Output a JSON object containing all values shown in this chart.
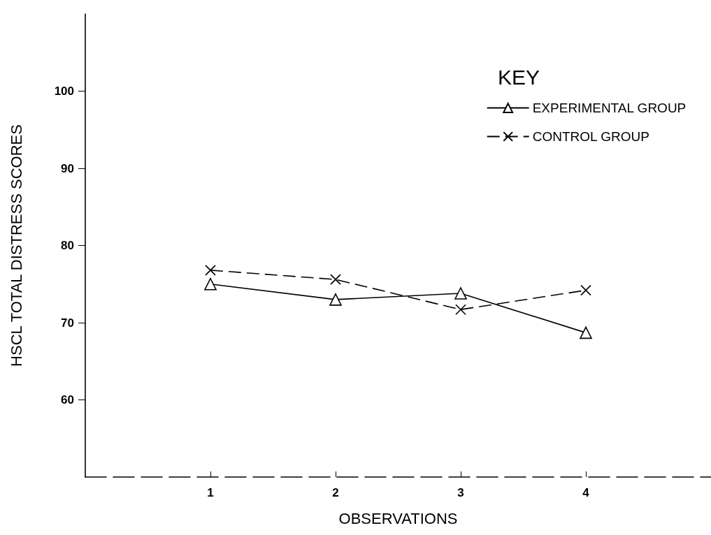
{
  "chart_data": {
    "type": "line",
    "xlabel": "OBSERVATIONS",
    "ylabel": "HSCL TOTAL DISTRESS SCORES",
    "legend_title": "KEY",
    "x": [
      1,
      2,
      3,
      4
    ],
    "series": [
      {
        "name": "EXPERIMENTAL GROUP",
        "color": "#000000",
        "marker": "triangle",
        "line_style": "solid",
        "values": [
          75,
          73,
          73.8,
          68.7
        ]
      },
      {
        "name": "CONTROL GROUP",
        "color": "#000000",
        "marker": "cross",
        "line_style": "dashed",
        "values": [
          76.8,
          75.6,
          71.7,
          74.2
        ]
      }
    ],
    "xlim": [
      0,
      5
    ],
    "xticks": [
      1,
      2,
      3,
      4
    ],
    "ylim": [
      50,
      110
    ],
    "yticks": [
      60,
      70,
      80,
      90,
      100
    ],
    "grid": false,
    "legend": "top right"
  }
}
